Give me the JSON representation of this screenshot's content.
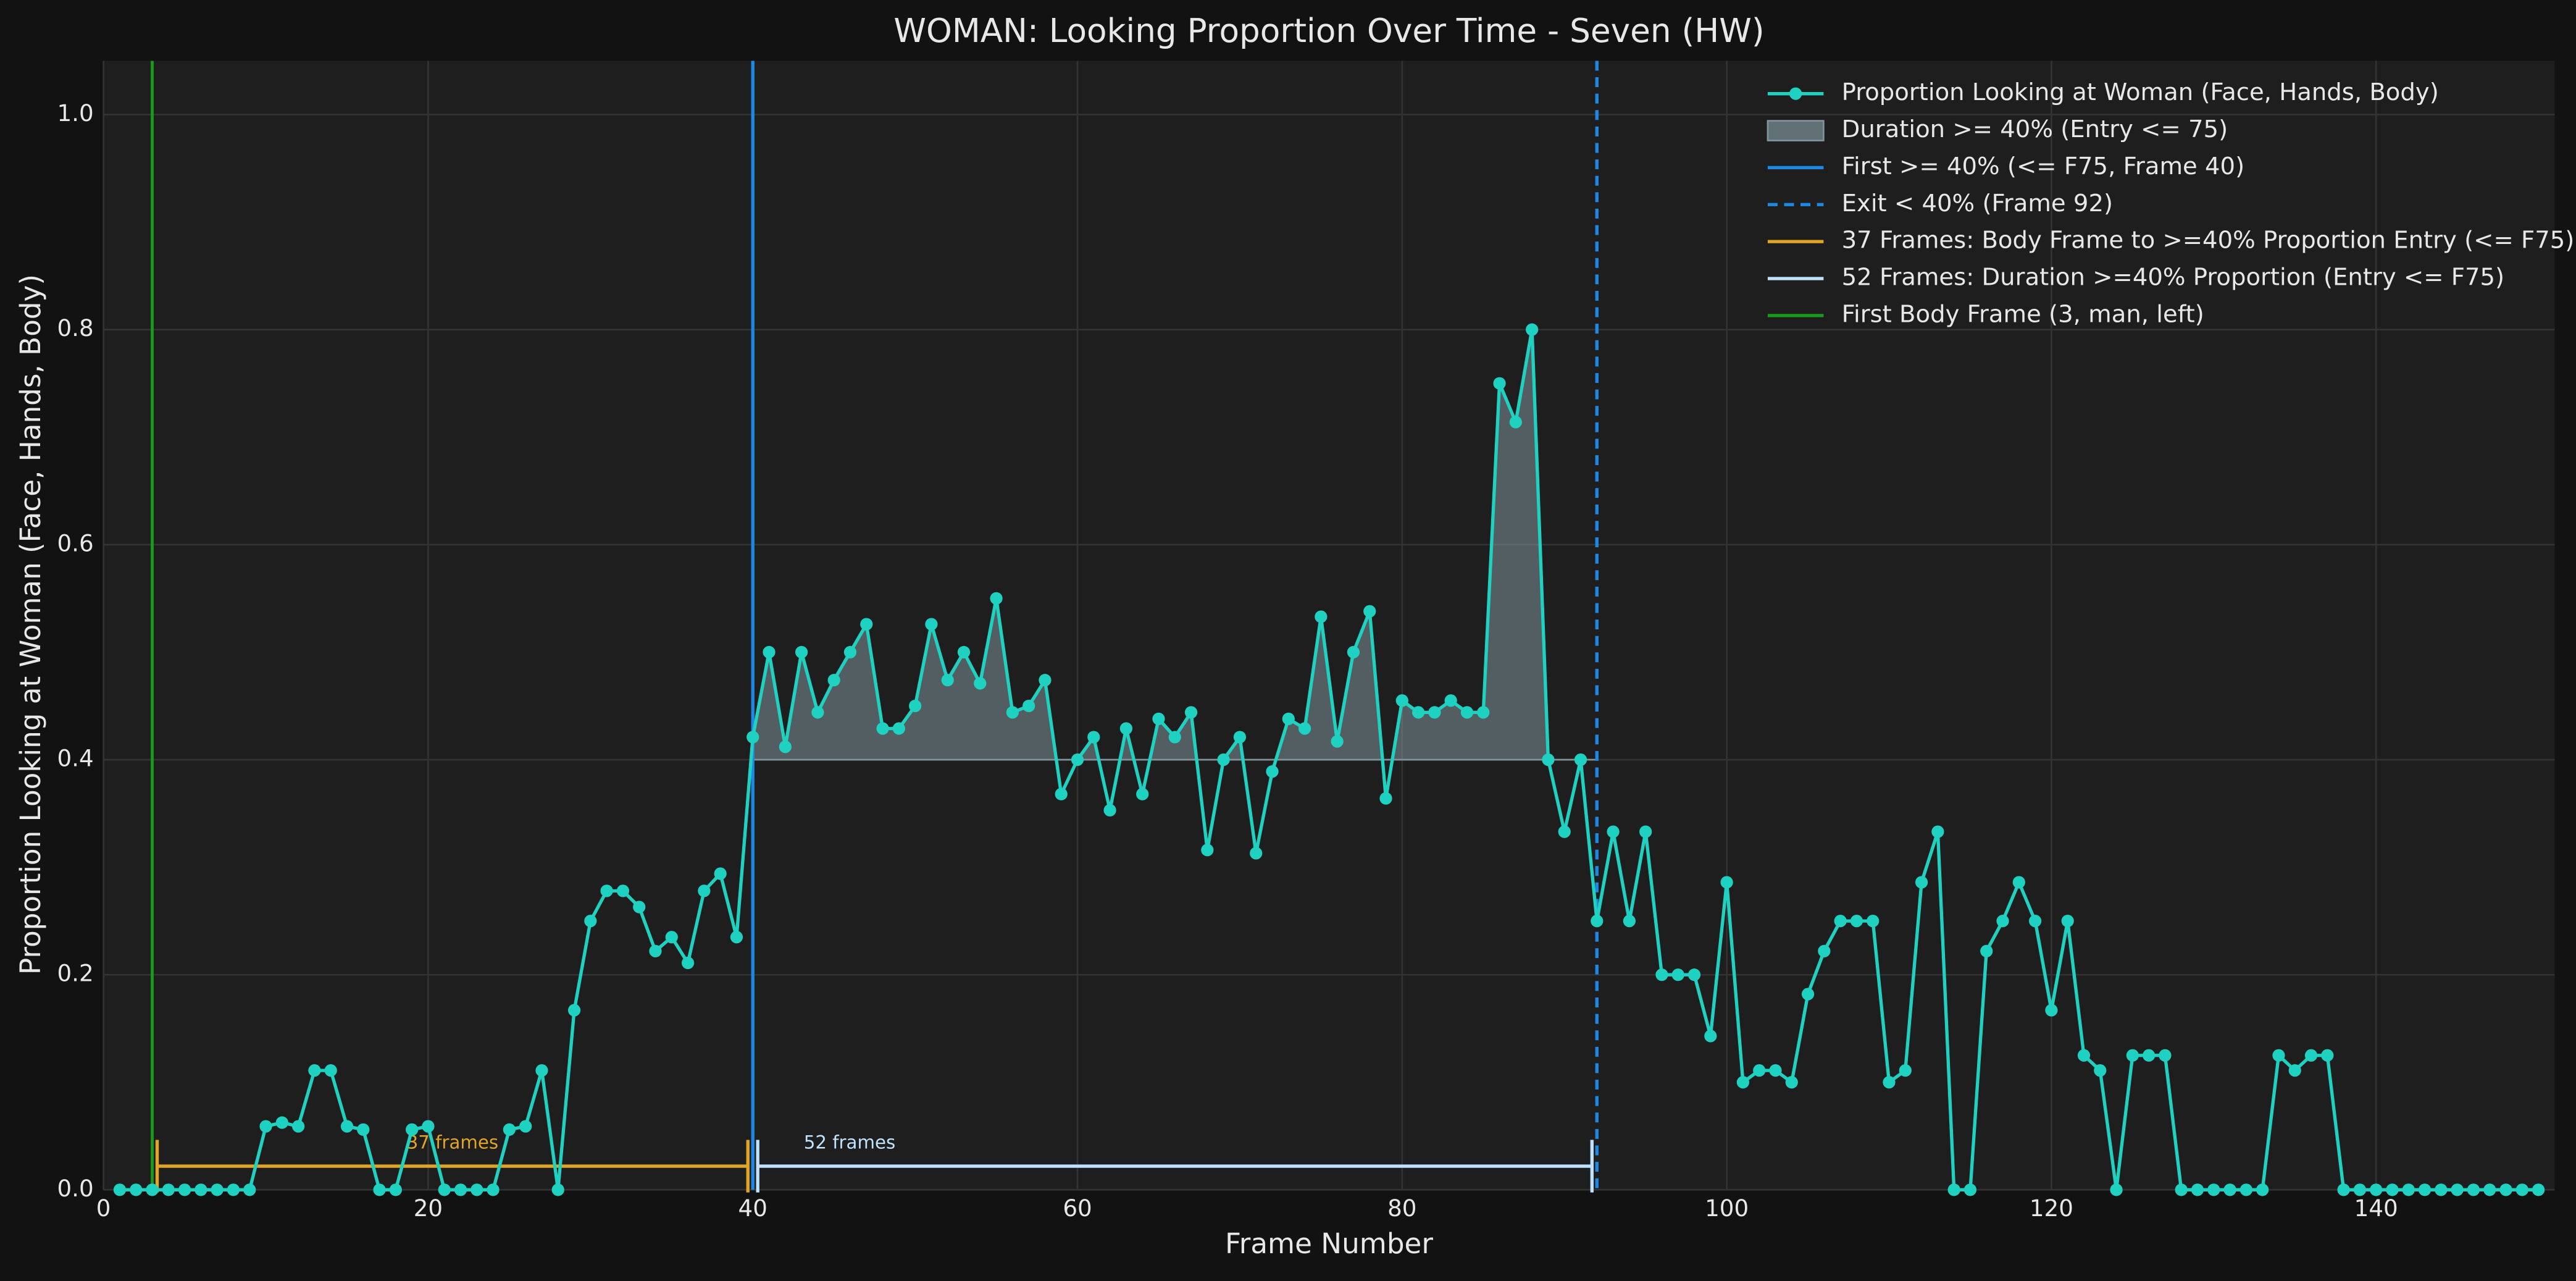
{
  "chart_data": {
    "type": "line",
    "title": "WOMAN: Looking Proportion Over Time - Seven (HW)",
    "x_label": "Frame Number",
    "y_label": "Proportion Looking at Woman (Face, Hands, Body)",
    "xlim": [
      0,
      151
    ],
    "ylim": [
      0,
      1.05
    ],
    "xticks": [
      0,
      20,
      40,
      60,
      80,
      100,
      120,
      140
    ],
    "yticks": [
      {
        "value": 0,
        "label": "0.0"
      },
      {
        "value": 0.2,
        "label": "0.2"
      },
      {
        "value": 0.4,
        "label": "0.4"
      },
      {
        "value": 0.6,
        "label": "0.6"
      },
      {
        "value": 0.8,
        "label": "0.8"
      },
      {
        "value": 1,
        "label": "1.0"
      }
    ],
    "grid": true,
    "legend": "upper right",
    "x": [
      1,
      2,
      3,
      4,
      5,
      6,
      7,
      8,
      9,
      10,
      11,
      12,
      13,
      14,
      15,
      16,
      17,
      18,
      19,
      20,
      21,
      22,
      23,
      24,
      25,
      26,
      27,
      28,
      29,
      30,
      31,
      32,
      33,
      34,
      35,
      36,
      37,
      38,
      39,
      40,
      41,
      42,
      43,
      44,
      45,
      46,
      47,
      48,
      49,
      50,
      51,
      52,
      53,
      54,
      55,
      56,
      57,
      58,
      59,
      60,
      61,
      62,
      63,
      64,
      65,
      66,
      67,
      68,
      69,
      70,
      71,
      72,
      73,
      74,
      75,
      76,
      77,
      78,
      79,
      80,
      81,
      82,
      83,
      84,
      85,
      86,
      87,
      88,
      89,
      90,
      91,
      92,
      93,
      94,
      95,
      96,
      97,
      98,
      99,
      100,
      101,
      102,
      103,
      104,
      105,
      106,
      107,
      108,
      109,
      110,
      111,
      112,
      113,
      114,
      115,
      116,
      117,
      118,
      119,
      120,
      121,
      122,
      123,
      124,
      125,
      126,
      127,
      128,
      129,
      130,
      131,
      132,
      133,
      134,
      135,
      136,
      137,
      138,
      139,
      140,
      141,
      142,
      143,
      144,
      145,
      146,
      147,
      148,
      149,
      150
    ],
    "series": [
      {
        "name": "Proportion Looking at Woman (Face, Hands, Body)",
        "color": "#1fd1c1",
        "values": [
          0,
          0,
          0,
          0,
          0,
          0,
          0,
          0,
          0,
          0.059,
          0.0625,
          0.059,
          0.111,
          0.111,
          0.059,
          0.056,
          0,
          0,
          0.056,
          0.059,
          0,
          0,
          0,
          0,
          0.056,
          0.059,
          0.111,
          0,
          0.167,
          0.25,
          0.278,
          0.278,
          0.263,
          0.222,
          0.235,
          0.211,
          0.278,
          0.294,
          0.235,
          0.421,
          0.5,
          0.412,
          0.5,
          0.444,
          0.474,
          0.5,
          0.526,
          0.429,
          0.429,
          0.45,
          0.526,
          0.474,
          0.5,
          0.471,
          0.55,
          0.444,
          0.45,
          0.474,
          0.368,
          0.4,
          0.421,
          0.353,
          0.429,
          0.368,
          0.438,
          0.421,
          0.444,
          0.316,
          0.4,
          0.421,
          0.313,
          0.389,
          0.438,
          0.429,
          0.533,
          0.417,
          0.5,
          0.538,
          0.364,
          0.455,
          0.444,
          0.444,
          0.455,
          0.444,
          0.444,
          0.75,
          0.714,
          0.8,
          0.4,
          0.333,
          0.4,
          0.25,
          0.333,
          0.25,
          0.333,
          0.2,
          0.2,
          0.2,
          0.143,
          0.286,
          0.1,
          0.111,
          0.111,
          0.1,
          0.182,
          0.222,
          0.25,
          0.25,
          0.25,
          0.1,
          0.111,
          0.286,
          0.333,
          0,
          0,
          0.222,
          0.25,
          0.286,
          0.25,
          0.167,
          0.25,
          0.125,
          0.111,
          0,
          0.125,
          0.125,
          0.125,
          0,
          0,
          0,
          0,
          0,
          0,
          0.125,
          0.111,
          0.125,
          0.125,
          0,
          0,
          0,
          0,
          0,
          0,
          0,
          0,
          0,
          0,
          0,
          0,
          0
        ]
      }
    ],
    "fill": {
      "name": "Duration >= 40% (Entry <= 75)",
      "color": "#7f949b",
      "threshold": 0.4,
      "from": 40,
      "to": 92
    },
    "vlines": [
      {
        "name": "First >= 40% (<= F75, Frame 40)",
        "x": 40,
        "color": "#1e88e5",
        "style": "solid"
      },
      {
        "name": "Exit < 40% (Frame 92)",
        "x": 92,
        "color": "#1e88e5",
        "style": "dashed"
      }
    ],
    "brackets": [
      {
        "name": "37 Frames: Body Frame to >=40% Proportion Entry (<= F75)",
        "text": "37 frames",
        "start": 3,
        "end": 40,
        "y": 0.022,
        "color": "#e0a526"
      },
      {
        "name": "52 Frames: Duration >=40% Proportion (Entry <= F75)",
        "text": "52 frames",
        "start": 40,
        "end": 92,
        "y": 0.022,
        "color": "#bfe3ff"
      }
    ],
    "first_body": {
      "name": "First Body Frame (3, man, left)",
      "x": 3,
      "color": "#1a9a1a"
    }
  }
}
